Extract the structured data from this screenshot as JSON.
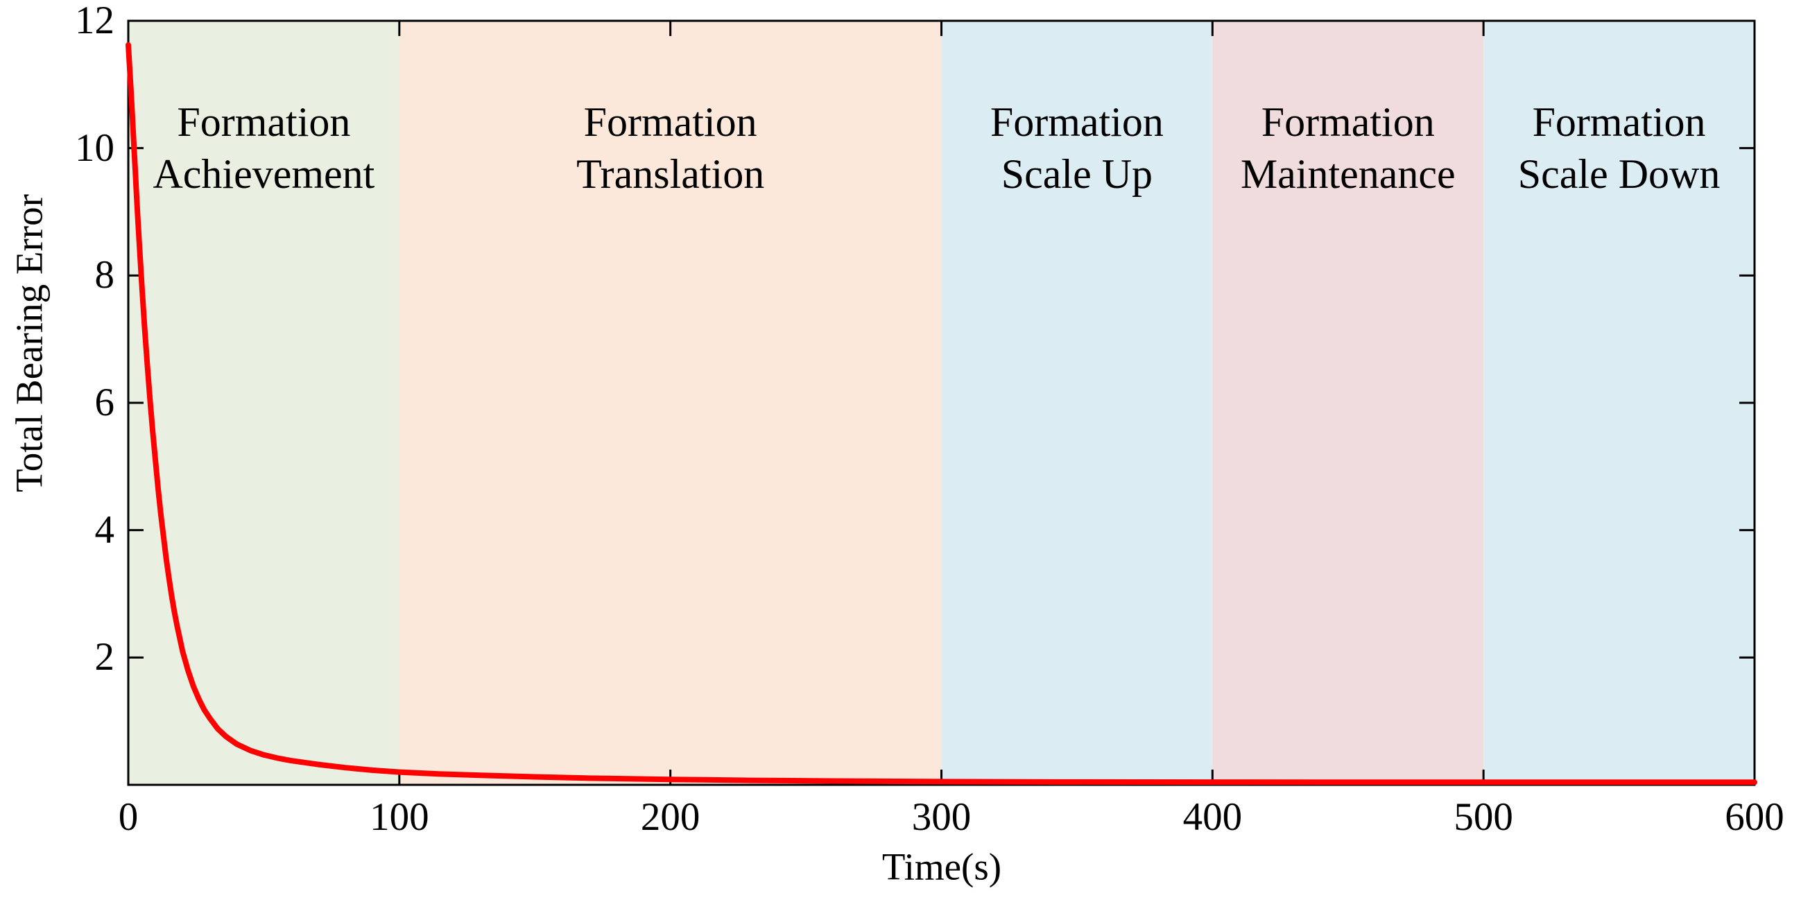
{
  "chart_data": {
    "type": "line",
    "title": "",
    "xlabel": "Time(s)",
    "ylabel": "Total Bearing Error",
    "xlim": [
      0,
      600
    ],
    "ylim": [
      0,
      12
    ],
    "x_ticks": [
      0,
      100,
      200,
      300,
      400,
      500,
      600
    ],
    "y_ticks": [
      2,
      4,
      6,
      8,
      10,
      12
    ],
    "grid": false,
    "legend": "none",
    "axis_color": "#000000",
    "text_color": "#000000",
    "series": [
      {
        "name": "Total Bearing Error",
        "color": "#ff0000",
        "x": [
          0,
          0.5,
          1,
          1.5,
          2,
          2.5,
          3,
          3.5,
          4,
          5,
          6,
          7,
          8,
          9,
          10,
          11,
          12,
          13,
          14,
          15,
          16,
          17,
          18,
          19,
          20,
          22,
          24,
          26,
          28,
          30,
          33,
          36,
          40,
          45,
          50,
          55,
          60,
          70,
          80,
          90,
          100,
          115,
          130,
          150,
          170,
          200,
          230,
          260,
          300,
          350,
          400,
          450,
          500,
          550,
          600
        ],
        "y": [
          11.62,
          11.25,
          10.9,
          10.5,
          10.1,
          9.7,
          9.3,
          8.9,
          8.55,
          7.85,
          7.2,
          6.6,
          6.05,
          5.55,
          5.1,
          4.65,
          4.25,
          3.9,
          3.55,
          3.25,
          2.97,
          2.72,
          2.5,
          2.3,
          2.1,
          1.8,
          1.55,
          1.35,
          1.18,
          1.05,
          0.88,
          0.76,
          0.64,
          0.54,
          0.47,
          0.42,
          0.38,
          0.32,
          0.27,
          0.23,
          0.2,
          0.17,
          0.15,
          0.125,
          0.105,
          0.085,
          0.07,
          0.06,
          0.05,
          0.045,
          0.042,
          0.04,
          0.04,
          0.04,
          0.04
        ]
      }
    ],
    "regions": [
      {
        "label_lines": [
          "Formation",
          "Achievement"
        ],
        "x_start": 0,
        "x_end": 100,
        "color": "#e9efe1"
      },
      {
        "label_lines": [
          "Formation",
          "Translation"
        ],
        "x_start": 100,
        "x_end": 300,
        "color": "#fce8da"
      },
      {
        "label_lines": [
          "Formation",
          "Scale Up"
        ],
        "x_start": 300,
        "x_end": 400,
        "color": "#dcecf3"
      },
      {
        "label_lines": [
          "Formation",
          "Maintenance"
        ],
        "x_start": 400,
        "x_end": 500,
        "color": "#f1dcdd"
      },
      {
        "label_lines": [
          "Formation",
          "Scale Down"
        ],
        "x_start": 500,
        "x_end": 600,
        "color": "#dcecf3"
      }
    ]
  }
}
